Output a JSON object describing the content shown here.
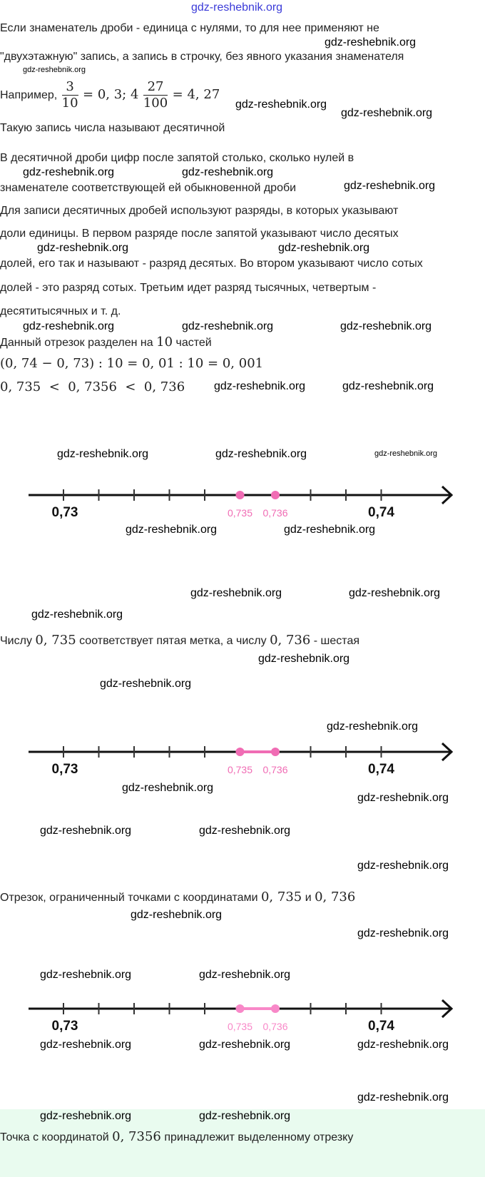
{
  "watermark": "gdz-reshebnik.org",
  "top_link": "gdz-reshebnik.org",
  "p1": "Если знаменатель дроби - единица с нулями, то для нее применяют не",
  "p2": "\"двухэтажную\" запись, а запись в строчку, без явного указания знаменателя",
  "ex_label": "Например,",
  "ex": {
    "n1": "3",
    "d1": "10",
    "m1": "= 0, 3; 4",
    "n2": "27",
    "d2": "100",
    "m2": "= 4, 27"
  },
  "p3": "Такую запись числа называют десятичной",
  "p4": "В десятичной дроби цифр после запятой столько, сколько нулей в",
  "p5": "знаменателе соответствующей ей обыкновенной дроби",
  "p6": "Для записи десятичных дробей используют разряды, в которых указывают",
  "p7": "доли единицы. В первом разряде после запятой указывают число десятых",
  "p8": "долей, его так и называют - разряд десятых. Во втором указывают число сотых",
  "p9": "долей - это разряд сотых. Третьим идет разряд тысячных, четвертым -",
  "p10": "десятитысячных и т. д.",
  "p11a": "Данный отрезок разделен на",
  "p11b": "10",
  "p11c": "частей",
  "eq1": "(0, 74 − 0, 73) : 10 = 0, 01 : 10 = 0, 001",
  "eq2": "0, 735  <  0, 7356  <  0, 736",
  "p12a": "Числу",
  "p12b": "0, 735",
  "p12c": "соответствует пятая метка, а числу",
  "p12d": "0, 736",
  "p12e": "- шестая",
  "p13a": "Отрезок, ограниченный точками с координатами",
  "p13b": "0, 735",
  "p13c": "и",
  "p13d": "0, 736",
  "p14a": "Точка с координатой",
  "p14b": "0, 7356",
  "p14c": "принадлежит выделенному отрезку",
  "numberlines": [
    {
      "ticks": 10,
      "start_label": "0,73",
      "end_label": "0,74",
      "points": [
        {
          "index": 5,
          "label": "0,735"
        },
        {
          "index": 6,
          "label": "0,736"
        }
      ],
      "segment": false,
      "point_color": "#f06cb4"
    },
    {
      "ticks": 10,
      "start_label": "0,73",
      "end_label": "0,74",
      "points": [
        {
          "index": 5,
          "label": "0,735"
        },
        {
          "index": 6,
          "label": "0,736"
        }
      ],
      "segment": true,
      "point_color": "#f06cb4"
    },
    {
      "ticks": 10,
      "start_label": "0,73",
      "end_label": "0,74",
      "points": [
        {
          "index": 5,
          "label": "0,735"
        },
        {
          "index": 6,
          "label": "0,736"
        }
      ],
      "segment": true,
      "point_color": "#f888c8"
    }
  ]
}
